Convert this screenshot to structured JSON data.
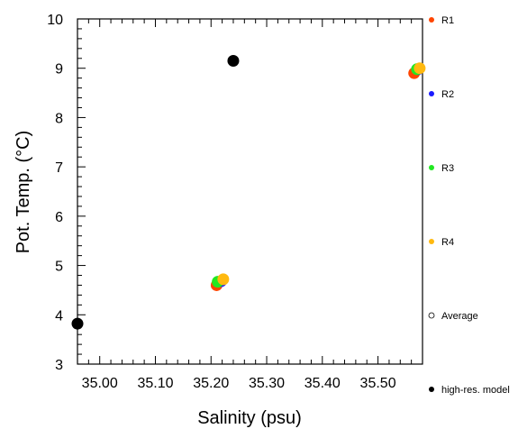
{
  "chart_data": {
    "type": "scatter",
    "xlabel": "Salinity (psu)",
    "ylabel": "Pot. Temp. (°C)",
    "xlim": [
      34.96,
      35.58
    ],
    "ylim": [
      3,
      10
    ],
    "xticks": [
      35.0,
      35.1,
      35.2,
      35.3,
      35.4,
      35.5
    ],
    "xtick_labels": [
      "35.00",
      "35.10",
      "35.20",
      "35.30",
      "35.40",
      "35.50"
    ],
    "yticks": [
      3,
      4,
      5,
      6,
      7,
      8,
      9,
      10
    ],
    "ytick_labels": [
      "3",
      "4",
      "5",
      "6",
      "7",
      "8",
      "9",
      "10"
    ],
    "grid": false,
    "legend_position": "right",
    "series": [
      {
        "name": "R1",
        "color": "#ff4500",
        "points": [
          {
            "x": 35.21,
            "y": 4.6
          },
          {
            "x": 35.565,
            "y": 8.9
          }
        ]
      },
      {
        "name": "R2",
        "color": "#1a1aff",
        "points": [
          {
            "x": 35.218,
            "y": 4.68
          },
          {
            "x": 35.572,
            "y": 8.98
          }
        ]
      },
      {
        "name": "R3",
        "color": "#22e822",
        "points": [
          {
            "x": 35.212,
            "y": 4.67
          },
          {
            "x": 35.57,
            "y": 8.98
          }
        ]
      },
      {
        "name": "R4",
        "color": "#ffb90f",
        "points": [
          {
            "x": 35.222,
            "y": 4.72
          },
          {
            "x": 35.575,
            "y": 9.0
          }
        ]
      },
      {
        "name": "Average",
        "color": "#000000",
        "hollow": true,
        "points": []
      },
      {
        "name": "high-res. model",
        "color": "#000000",
        "points": [
          {
            "x": 34.96,
            "y": 3.82
          },
          {
            "x": 35.24,
            "y": 9.15
          }
        ]
      }
    ]
  }
}
